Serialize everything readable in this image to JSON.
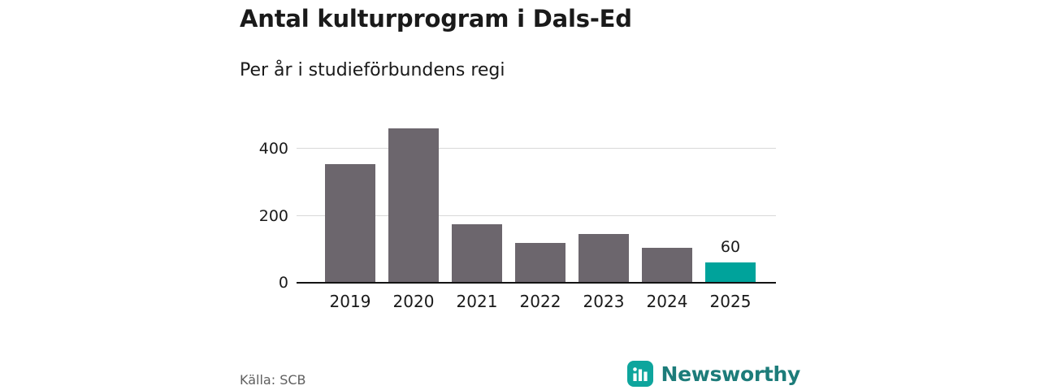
{
  "chart_data": {
    "type": "bar",
    "title": "Antal kulturprogram i Dals-Ed",
    "subtitle": "Per år i studieförbundens regi",
    "categories": [
      "2019",
      "2020",
      "2021",
      "2022",
      "2023",
      "2024",
      "2025"
    ],
    "values": [
      355,
      460,
      175,
      120,
      145,
      105,
      60
    ],
    "value_labels": {
      "2025": "60"
    },
    "yticks": [
      0,
      200,
      400
    ],
    "ylim": [
      0,
      485
    ],
    "xlabel": "",
    "ylabel": "",
    "grid": "horizontal",
    "legend": "none",
    "bar_color": "#6c666d",
    "highlight_color": "#00a39b",
    "highlight_index": 6
  },
  "footer": {
    "source": "Källa: SCB",
    "brand": "Newsworthy"
  },
  "colors": {
    "brand_icon": "#0ea59d",
    "brand_text": "#1d7c7a",
    "grid": "#d9d9d9",
    "axis": "#141414"
  }
}
